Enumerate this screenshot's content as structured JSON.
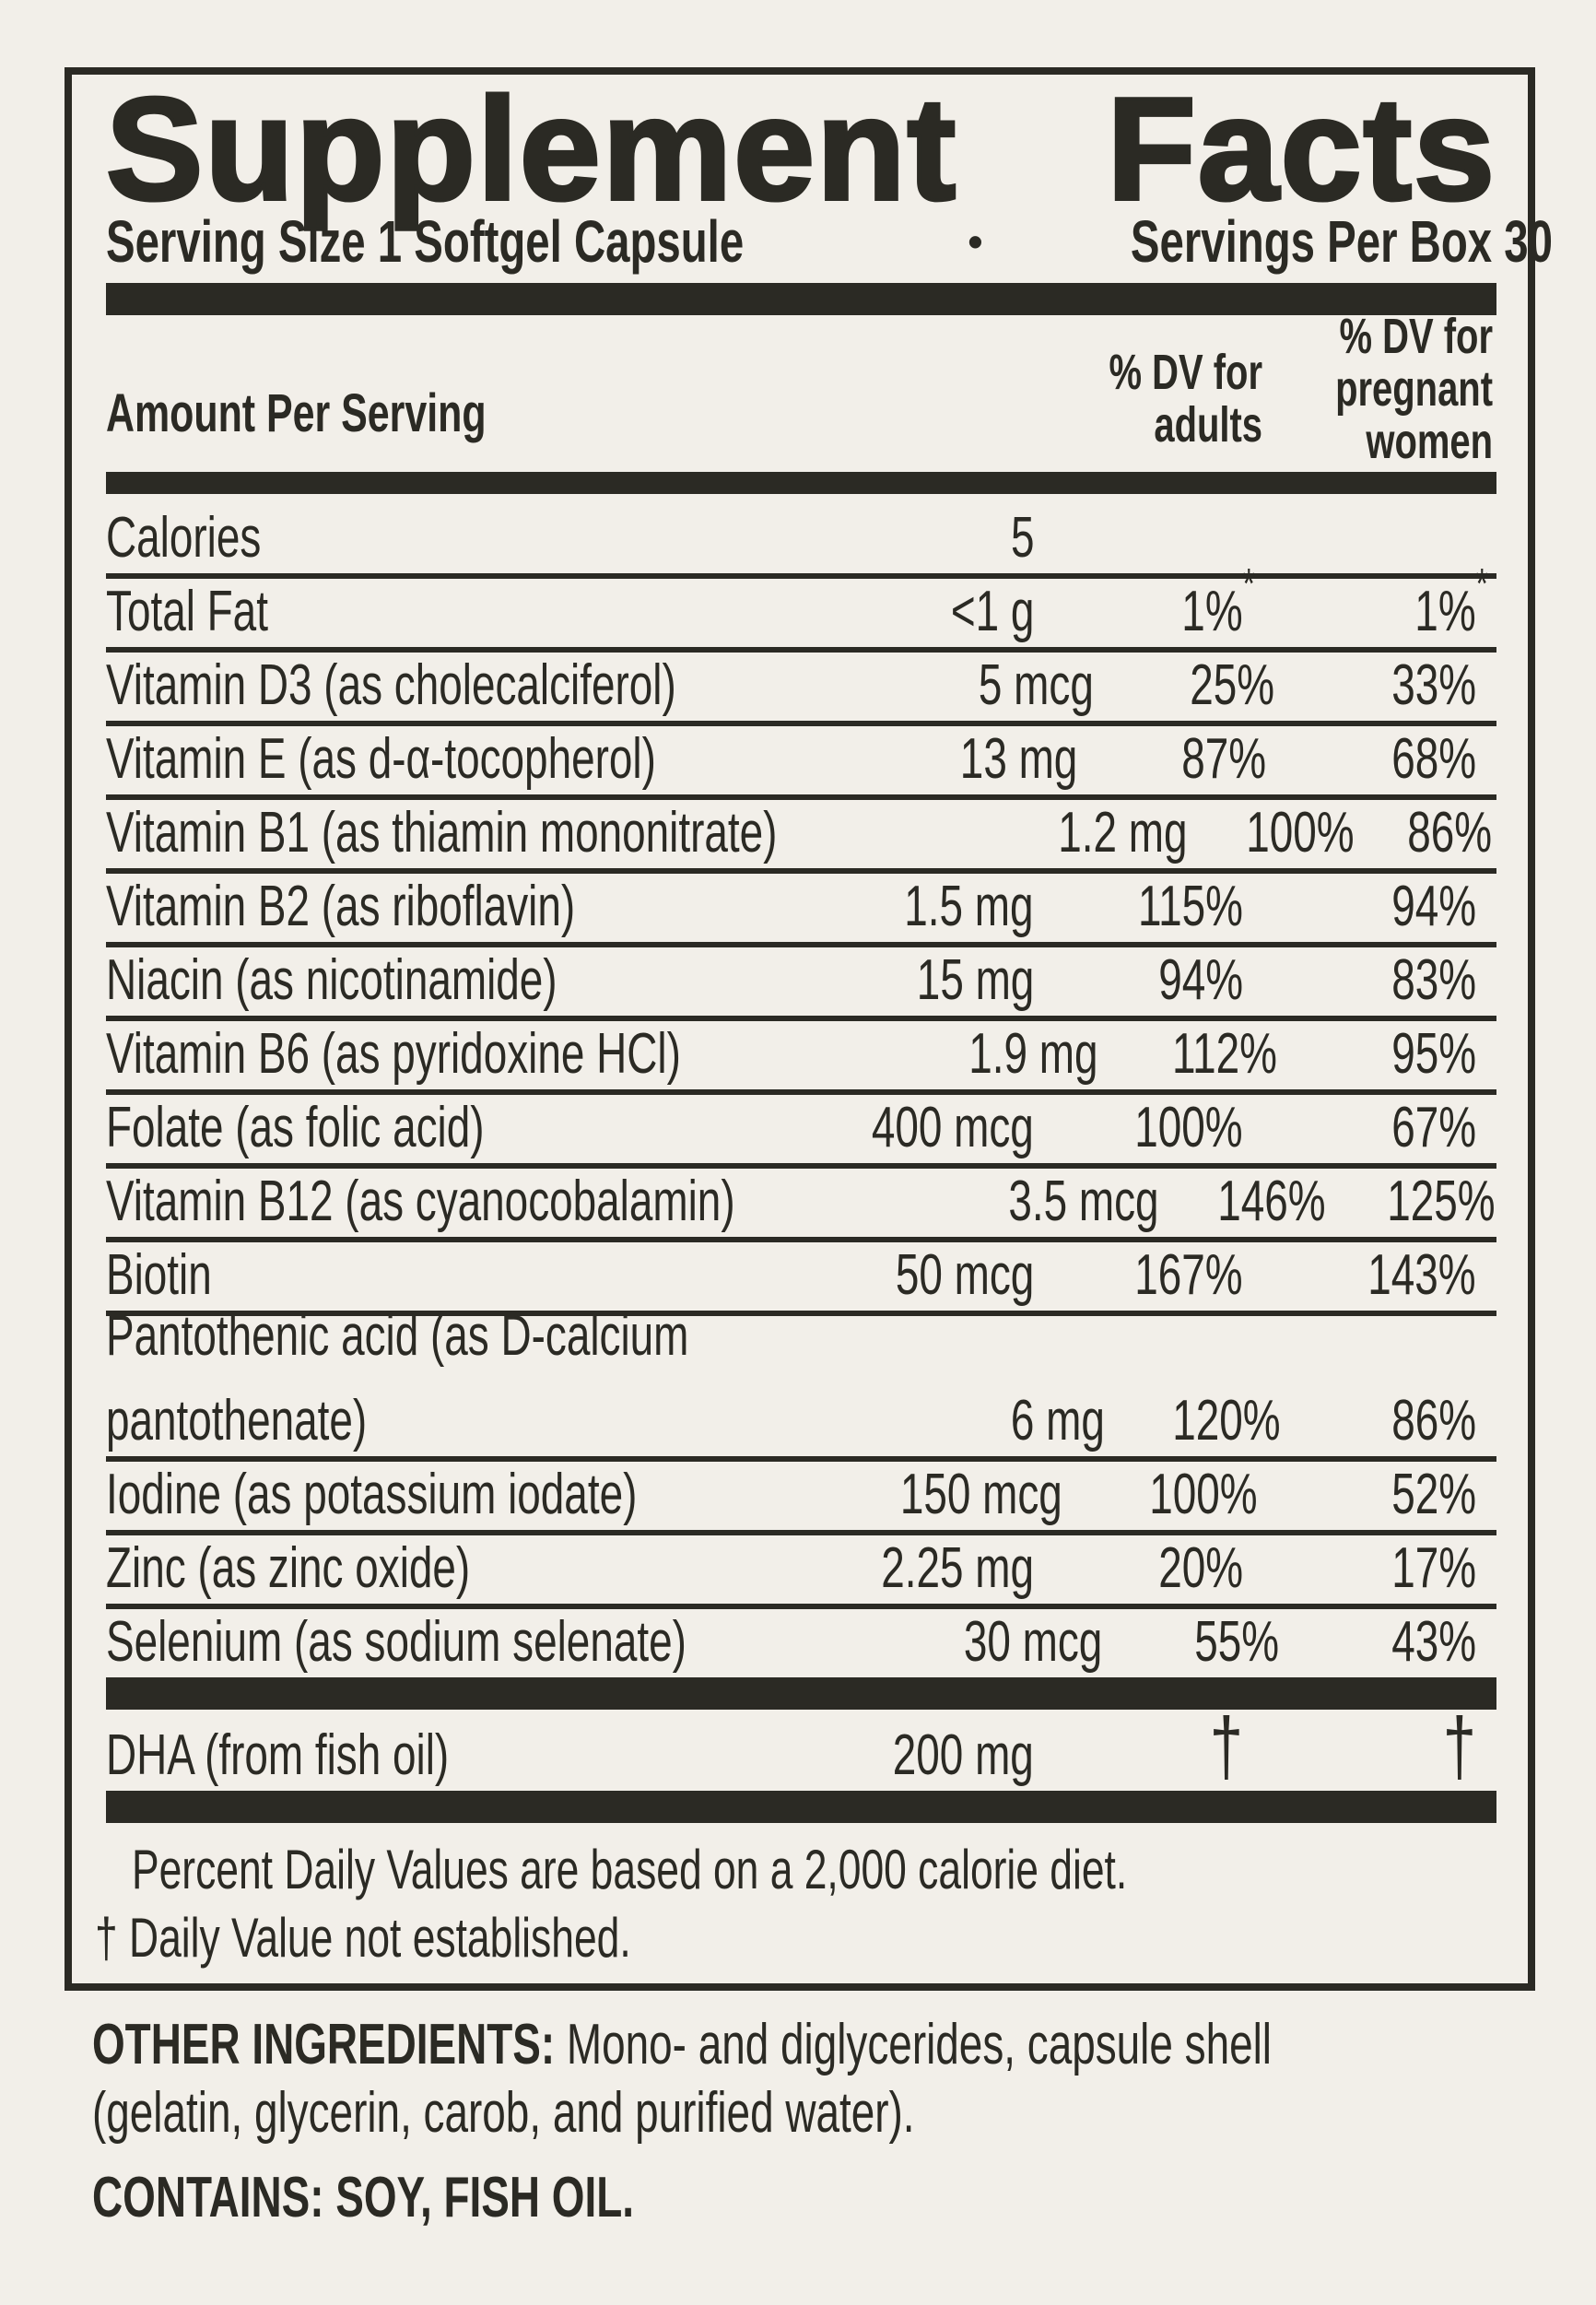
{
  "colors": {
    "background": "#f2efe9",
    "ink": "#2b2a24"
  },
  "header": {
    "title": "Supplement Facts",
    "serving_size": "Serving Size 1 Softgel Capsule",
    "bullet": "•",
    "servings_per_box": "Servings Per Box 30"
  },
  "columns": {
    "amount": "Amount Per Serving",
    "adults_line1": "% DV for",
    "adults_line2": "adults",
    "pregnant_line1": "% DV for",
    "pregnant_line2": "pregnant",
    "pregnant_line3": "women"
  },
  "calories": {
    "name": "Calories",
    "amount": "5"
  },
  "rows": [
    {
      "name": "Total Fat",
      "amount": "<1 g",
      "adults": "1%",
      "adults_sup": "*",
      "pregnant": "1%",
      "pregnant_sup": "*"
    },
    {
      "name": "Vitamin D3 (as cholecalciferol)",
      "amount": "5 mcg",
      "adults": "25%",
      "pregnant": "33%"
    },
    {
      "name": "Vitamin E (as d-α-tocopherol)",
      "amount": "13 mg",
      "adults": "87%",
      "pregnant": "68%"
    },
    {
      "name": "Vitamin B1 (as thiamin mononitrate)",
      "amount": "1.2 mg",
      "adults": "100%",
      "pregnant": "86%"
    },
    {
      "name": "Vitamin B2 (as riboflavin)",
      "amount": "1.5 mg",
      "adults": "115%",
      "pregnant": "94%"
    },
    {
      "name": "Niacin (as nicotinamide)",
      "amount": "15 mg",
      "adults": "94%",
      "pregnant": "83%"
    },
    {
      "name": "Vitamin B6 (as pyridoxine HCl)",
      "amount": "1.9 mg",
      "adults": "112%",
      "pregnant": "95%"
    },
    {
      "name": "Folate (as folic acid)",
      "amount": "400 mcg",
      "adults": "100%",
      "pregnant": "67%"
    },
    {
      "name": "Vitamin B12 (as cyanocobalamin)",
      "amount": "3.5 mcg",
      "adults": "146%",
      "pregnant": "125%"
    },
    {
      "name": "Biotin",
      "amount": "50 mcg",
      "adults": "167%",
      "pregnant": "143%"
    },
    {
      "name": "Pantothenic acid (as D-calcium",
      "name2": "pantothenate)",
      "amount": "6 mg",
      "adults": "120%",
      "pregnant": "86%"
    },
    {
      "name": "Iodine (as potassium iodate)",
      "amount": "150 mcg",
      "adults": "100%",
      "pregnant": "52%"
    },
    {
      "name": "Zinc (as zinc oxide)",
      "amount": "2.25 mg",
      "adults": "20%",
      "pregnant": "17%"
    },
    {
      "name": "Selenium (as sodium selenate)",
      "amount": "30 mcg",
      "adults": "55%",
      "pregnant": "43%"
    }
  ],
  "dha": {
    "name": "DHA (from fish oil)",
    "amount": "200 mg",
    "adults": "†",
    "pregnant": "†"
  },
  "footnotes": {
    "line1": "Percent Daily Values are based on a 2,000 calorie diet.",
    "line2": "† Daily Value not established."
  },
  "other_ingredients": {
    "label": "OTHER INGREDIENTS:",
    "line1": "Mono- and diglycerides, capsule shell",
    "line2": "(gelatin, glycerin, carob, and purified water)."
  },
  "contains": "CONTAINS: SOY, FISH OIL."
}
